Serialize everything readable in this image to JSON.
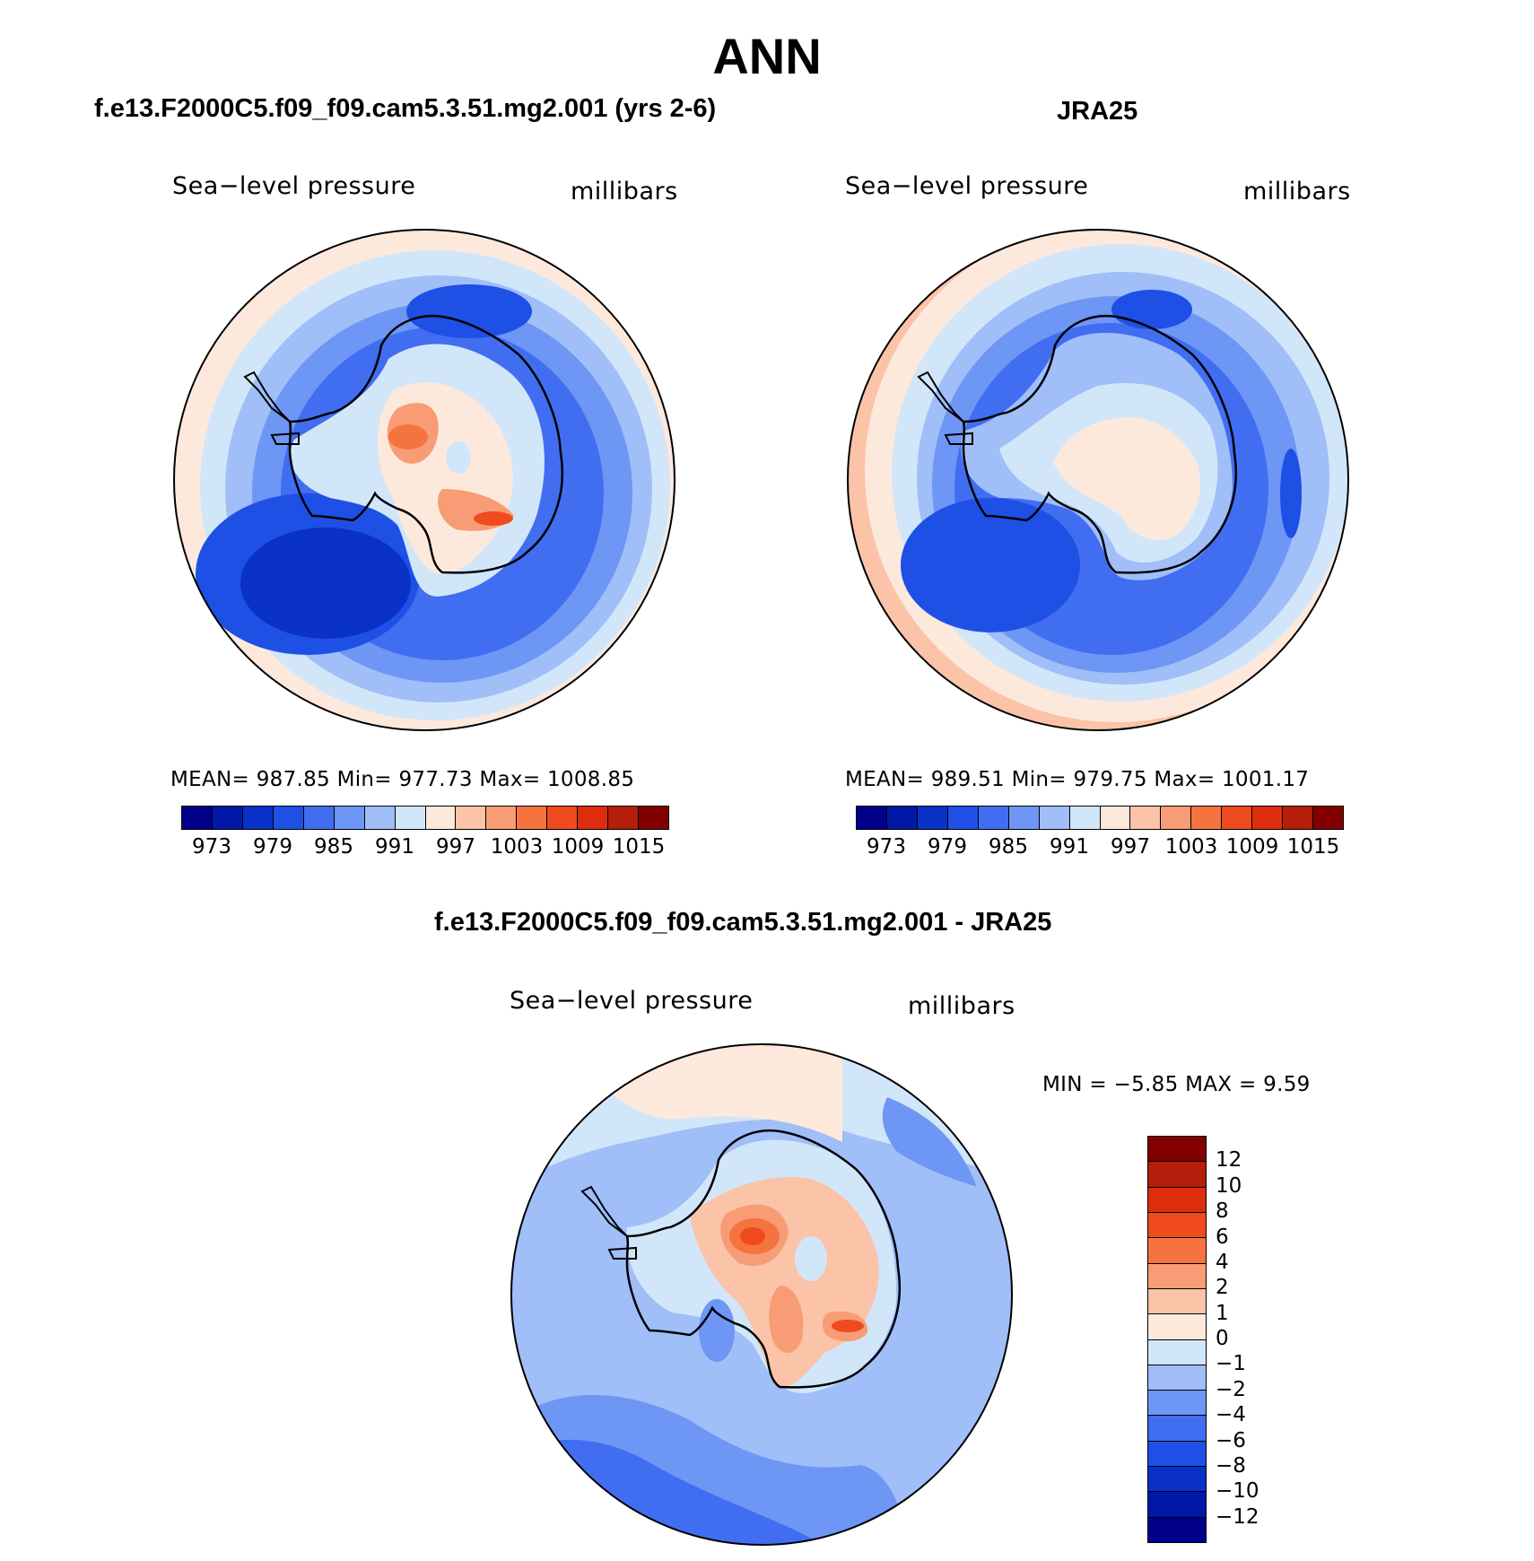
{
  "title": "ANN",
  "panels": {
    "model": {
      "title": "f.e13.F2000C5.f09_f09.cam5.3.51.mg2.001 (yrs 2-6)",
      "variable": "Sea−level pressure",
      "units": "millibars",
      "stats": "MEAN=  987.85    Min=  977.73    Max=  1008.85"
    },
    "obs": {
      "title": "JRA25",
      "variable": "Sea−level pressure",
      "units": "millibars",
      "stats": "MEAN=  989.51    Min=  979.75    Max=  1001.17"
    },
    "diff": {
      "title": "f.e13.F2000C5.f09_f09.cam5.3.51.mg2.001 - JRA25",
      "variable": "Sea−level pressure",
      "units": "millibars",
      "stats": "MIN =    −5.85  MAX =      9.59"
    }
  },
  "colorbar_abs": {
    "colors": [
      "#00008b",
      "#0018a8",
      "#0a32c8",
      "#1e50e6",
      "#416ef0",
      "#6e96f5",
      "#a0bef8",
      "#d2e6fa",
      "#fde9dc",
      "#fbc3a8",
      "#f89c75",
      "#f5733f",
      "#ef4b1e",
      "#de2d0e",
      "#b41e0a",
      "#820000"
    ],
    "tick_labels": [
      "973",
      "979",
      "985",
      "991",
      "997",
      "1003",
      "1009",
      "1015"
    ]
  },
  "colorbar_diff": {
    "colors": [
      "#820000",
      "#b41e0a",
      "#de2d0e",
      "#ef4b1e",
      "#f5733f",
      "#f89c75",
      "#fbc3a8",
      "#fde9dc",
      "#d2e6fa",
      "#a0bef8",
      "#6e96f5",
      "#416ef0",
      "#1e50e6",
      "#0a32c8",
      "#0018a8",
      "#00008b"
    ],
    "tick_labels": [
      "12",
      "10",
      "8",
      "6",
      "4",
      "2",
      "1",
      "0",
      "−1",
      "−2",
      "−4",
      "−6",
      "−8",
      "−10",
      "−12"
    ]
  }
}
